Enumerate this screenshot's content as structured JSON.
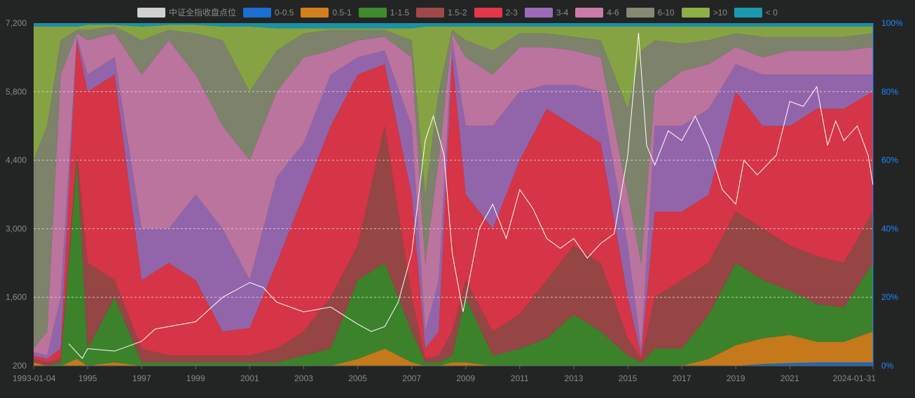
{
  "chart_data": {
    "type": "area",
    "stacked": true,
    "line_series": "中证全指收盘点位",
    "legend": [
      {
        "name": "中证全指收盘点位",
        "color": "#d0d0d0"
      },
      {
        "name": "0-0.5",
        "color": "#1a6fd0"
      },
      {
        "name": "0.5-1",
        "color": "#d4801a"
      },
      {
        "name": "1-1.5",
        "color": "#3f8a2c"
      },
      {
        "name": "1.5-2",
        "color": "#a04848"
      },
      {
        "name": "2-3",
        "color": "#e5364a"
      },
      {
        "name": "3-4",
        "color": "#9c6ab6"
      },
      {
        "name": "4-6",
        "color": "#c97ba9"
      },
      {
        "name": "6-10",
        "color": "#868a72"
      },
      {
        "name": ">10",
        "color": "#8fae48"
      },
      {
        "name": "< 0",
        "color": "#1a9ab0"
      }
    ],
    "legend_placement": "top-center",
    "x_tick_labels": [
      "1993-01-04",
      "1995",
      "1997",
      "1999",
      "2001",
      "2003",
      "2005",
      "2007",
      "2009",
      "2011",
      "2013",
      "2015",
      "2017",
      "2019",
      "2021",
      "2024-01-31"
    ],
    "x_tick_years": [
      1993.0,
      1995,
      1997,
      1999,
      2001,
      2003,
      2005,
      2007,
      2009,
      2011,
      2013,
      2015,
      2017,
      2019,
      2021,
      2024.08
    ],
    "xlim": [
      1993.0,
      2024.08
    ],
    "left_axis": {
      "ticks": [
        "200",
        "1,600",
        "3,000",
        "4,400",
        "5,800",
        "7,200"
      ],
      "ylim": [
        200,
        7200
      ]
    },
    "right_axis": {
      "ticks": [
        "0%",
        "20%",
        "40%",
        "60%",
        "80%",
        "100%"
      ],
      "ylim": [
        0,
        100
      ]
    },
    "grid": "horizontal dashed",
    "share_series_order": [
      "0-0.5",
      "0.5-1",
      "1-1.5",
      "1.5-2",
      "2-3",
      "3-4",
      "4-6",
      "6-10",
      ">10",
      "< 0"
    ],
    "share_x": [
      1993.0,
      1993.5,
      1994.0,
      1994.6,
      1995,
      1996,
      1997,
      1998,
      1999,
      2000,
      2001,
      2002,
      2003,
      2004,
      2005,
      2006,
      2007,
      2007.5,
      2008,
      2008.5,
      2009,
      2010,
      2011,
      2012,
      2013,
      2014,
      2015,
      2015.5,
      2016,
      2017,
      2018,
      2019,
      2020,
      2021,
      2022,
      2023,
      2024.08
    ],
    "shares_pct": [
      [
        0,
        1,
        0,
        1,
        1,
        1,
        1,
        55,
        39,
        1
      ],
      [
        0,
        0,
        0,
        1,
        1,
        1,
        7,
        60,
        29,
        1
      ],
      [
        0,
        0,
        1,
        1,
        3,
        15,
        65,
        10,
        4,
        1
      ],
      [
        0,
        2,
        58,
        2,
        33,
        1,
        1,
        1,
        1,
        1
      ],
      [
        0,
        0,
        5,
        25,
        50,
        5,
        10,
        3,
        1.5,
        0.5
      ],
      [
        0,
        1,
        19,
        5,
        60,
        5,
        7,
        2,
        0.5,
        0.5
      ],
      [
        0,
        0,
        1,
        4,
        20,
        15,
        45,
        10,
        4,
        1
      ],
      [
        0,
        0,
        1,
        2,
        27,
        10,
        55,
        3,
        1.5,
        0.5
      ],
      [
        0,
        0,
        1,
        2,
        22,
        25,
        35,
        12,
        2.5,
        0.5
      ],
      [
        0,
        0,
        1,
        2,
        7,
        30,
        30,
        25,
        4,
        1
      ],
      [
        0,
        0,
        1,
        2,
        8,
        14,
        35,
        20,
        19,
        1
      ],
      [
        0,
        0,
        1,
        4,
        25,
        25,
        25,
        12,
        6.5,
        1.5
      ],
      [
        0,
        0,
        3,
        7,
        40,
        15,
        25,
        7,
        1.5,
        1.5
      ],
      [
        0,
        0,
        5,
        15,
        50,
        15,
        7,
        6,
        0.5,
        1.5
      ],
      [
        0,
        2,
        23,
        10,
        50,
        5,
        5,
        3,
        0.5,
        1.5
      ],
      [
        0,
        5,
        25,
        40,
        18,
        4,
        4,
        2,
        0.5,
        1.5
      ],
      [
        0,
        1,
        9,
        10,
        30,
        20,
        20,
        5,
        3.5,
        1.5
      ],
      [
        0,
        0,
        1,
        1,
        3,
        5,
        20,
        20,
        49,
        1
      ],
      [
        0,
        0,
        1,
        2,
        7,
        15,
        35,
        20,
        19,
        1
      ],
      [
        0,
        1,
        2,
        7,
        80,
        5,
        2,
        1,
        1,
        1
      ],
      [
        0,
        1,
        19,
        5,
        25,
        20,
        20,
        5,
        4,
        1
      ],
      [
        0,
        0,
        3,
        7,
        30,
        30,
        15,
        7,
        7,
        1
      ],
      [
        0,
        0,
        5,
        10,
        45,
        20,
        13,
        4,
        2,
        1
      ],
      [
        0,
        0,
        8,
        17,
        50,
        7,
        11,
        4,
        2,
        1
      ],
      [
        0,
        0,
        15,
        20,
        35,
        12,
        10,
        4,
        3,
        1
      ],
      [
        0,
        0,
        10,
        20,
        35,
        15,
        10,
        5,
        4,
        1
      ],
      [
        0,
        0,
        3,
        5,
        12,
        15,
        15,
        25,
        24,
        1
      ],
      [
        0,
        0,
        1,
        1,
        1,
        2,
        25,
        62,
        7,
        1
      ],
      [
        0,
        0,
        5,
        15,
        25,
        25,
        10,
        15,
        4,
        1
      ],
      [
        0,
        0,
        5,
        20,
        20,
        25,
        16,
        8,
        5,
        1
      ],
      [
        0,
        2,
        13,
        15,
        20,
        25,
        13,
        7,
        4,
        1
      ],
      [
        0,
        6,
        24,
        15,
        35,
        8,
        5,
        4,
        2,
        1
      ],
      [
        0.5,
        7.5,
        17,
        15,
        30,
        15,
        5,
        6,
        3,
        1
      ],
      [
        0.8,
        8.2,
        13,
        13,
        35,
        15,
        7,
        4,
        3,
        1
      ],
      [
        1,
        6,
        11,
        14,
        43,
        10,
        7,
        4,
        3,
        1
      ],
      [
        1,
        6,
        10,
        13,
        45,
        10,
        7,
        4,
        3,
        1
      ],
      [
        1,
        9,
        20,
        15,
        35,
        5,
        8,
        4,
        2,
        1
      ]
    ],
    "index_line": {
      "x": [
        1994.3,
        1994.8,
        1995,
        1996,
        1997,
        1997.5,
        1998,
        1999,
        1999.5,
        2000,
        2001,
        2001.5,
        2002,
        2003,
        2004,
        2005,
        2005.5,
        2006,
        2006.5,
        2007,
        2007.5,
        2007.8,
        2008.2,
        2008.5,
        2008.9,
        2009.5,
        2010,
        2010.5,
        2011,
        2011.5,
        2012,
        2012.5,
        2013,
        2013.5,
        2014,
        2014.5,
        2015,
        2015.4,
        2015.7,
        2016,
        2016.5,
        2017,
        2017.5,
        2018,
        2018.5,
        2019,
        2019.3,
        2019.8,
        2020.5,
        2021,
        2021.5,
        2022,
        2022.4,
        2022.7,
        2023,
        2023.5,
        2023.9,
        2024.08
      ],
      "y": [
        650,
        350,
        550,
        500,
        700,
        950,
        1000,
        1100,
        1350,
        1600,
        1900,
        1800,
        1500,
        1300,
        1400,
        1050,
        900,
        1000,
        1500,
        2500,
        4800,
        5300,
        4500,
        2500,
        1300,
        3000,
        3500,
        2800,
        3800,
        3400,
        2800,
        2600,
        2800,
        2400,
        2700,
        2900,
        4500,
        7000,
        4700,
        4300,
        5000,
        4800,
        5300,
        4700,
        3800,
        3500,
        4400,
        4100,
        4500,
        5600,
        5500,
        5900,
        4700,
        5200,
        4800,
        5100,
        4500,
        3900
      ]
    }
  }
}
